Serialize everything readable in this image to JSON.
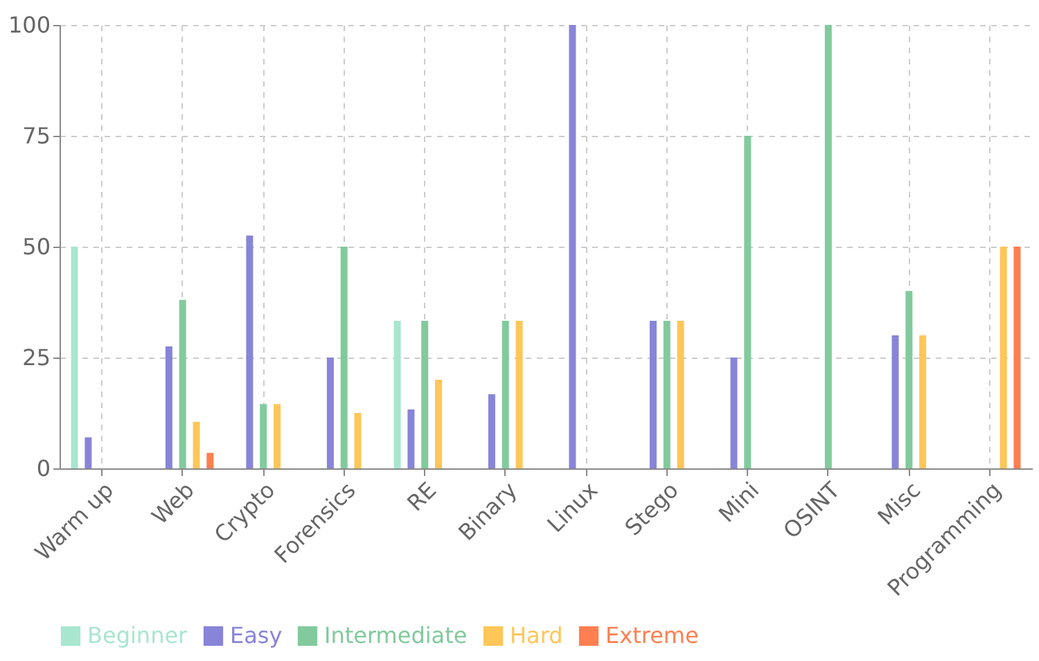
{
  "chart_data": {
    "type": "bar",
    "categories": [
      "Warm up",
      "Web",
      "Crypto",
      "Forensics",
      "RE",
      "Binary",
      "Linux",
      "Stego",
      "Mini",
      "OSINT",
      "Misc",
      "Programming"
    ],
    "series": [
      {
        "name": "Beginner",
        "color": "#a8e6cf",
        "values": [
          50,
          0,
          0,
          0,
          33.3,
          0,
          0,
          0,
          0,
          0,
          0,
          0
        ]
      },
      {
        "name": "Easy",
        "color": "#8884d8",
        "values": [
          7,
          27.5,
          52.5,
          25,
          13.3,
          16.7,
          100,
          33.3,
          25,
          0,
          30,
          0
        ]
      },
      {
        "name": "Intermediate",
        "color": "#82ca9d",
        "values": [
          0,
          38,
          14.5,
          50,
          33.3,
          33.3,
          0,
          33.3,
          75,
          100,
          40,
          0
        ]
      },
      {
        "name": "Hard",
        "color": "#ffc658",
        "values": [
          0,
          10.5,
          14.5,
          12.5,
          20,
          33.3,
          0,
          33.3,
          0,
          0,
          30,
          50
        ]
      },
      {
        "name": "Extreme",
        "color": "#ff7f50",
        "values": [
          0,
          3.5,
          0,
          0,
          0,
          0,
          0,
          0,
          0,
          0,
          0,
          50
        ]
      }
    ],
    "ylim": [
      0,
      100
    ],
    "yticks": [
      0,
      25,
      50,
      75,
      100
    ],
    "grid": true,
    "legend": "bottom"
  }
}
